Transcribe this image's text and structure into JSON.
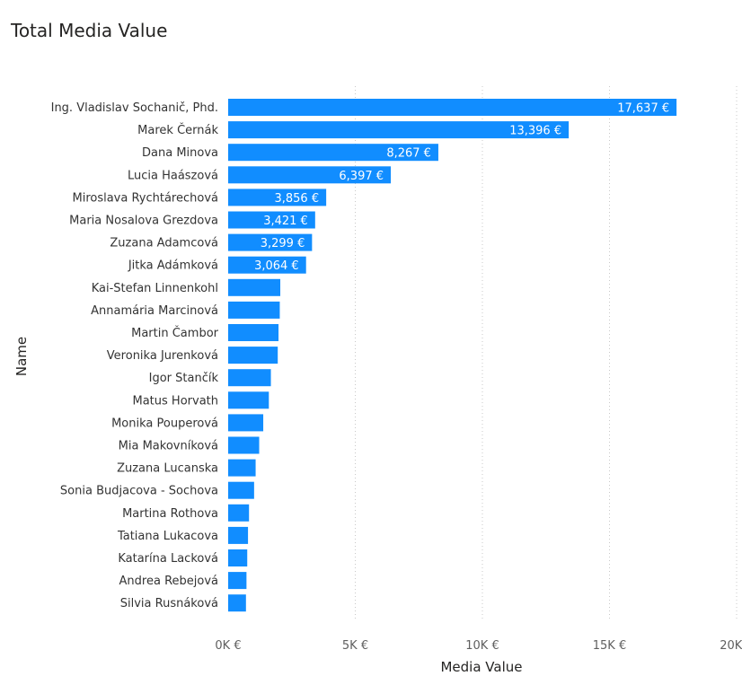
{
  "chart_data": {
    "type": "bar",
    "orientation": "horizontal",
    "title": "Total Media Value",
    "xlabel": "Media Value",
    "ylabel": "Name",
    "xlim": [
      0,
      20000
    ],
    "x_ticks": [
      0,
      5000,
      10000,
      15000,
      20000
    ],
    "x_tick_labels": [
      "0K €",
      "5K €",
      "10K €",
      "15K €",
      "20K €"
    ],
    "grid": "vertical dotted",
    "bar_color": "#118DFF",
    "categories": [
      "Ing. Vladislav Sochanič, Phd.",
      "Marek Černák",
      "Dana Minova",
      "Lucia Haászová",
      "Miroslava Rychtárechová",
      "Maria Nosalova Grezdova",
      "Zuzana Adamcová",
      "Jitka Adámková",
      "Kai-Stefan Linnenkohl",
      "Annamária Marcinová",
      "Martin Čambor",
      "Veronika Jurenková",
      "Igor Stančík",
      "Matus Horvath",
      "Monika Pouperová",
      "Mia Makovníková",
      "Zuzana Lucanska",
      "Sonia Budjacova - Sochova",
      "Martina Rothova",
      "Tatiana Lukacova",
      "Katarína Lacková",
      "Andrea Rebejová",
      "Silvia Rusnáková"
    ],
    "values": [
      17637,
      13396,
      8267,
      6397,
      3856,
      3421,
      3299,
      3064,
      2050,
      2030,
      1980,
      1950,
      1680,
      1600,
      1380,
      1220,
      1080,
      1020,
      820,
      780,
      750,
      720,
      700
    ],
    "data_labels": [
      "17,637 €",
      "13,396 €",
      "8,267 €",
      "6,397 €",
      "3,856 €",
      "3,421 €",
      "3,299 €",
      "3,064 €",
      "",
      "",
      "",
      "",
      "",
      "",
      "",
      "",
      "",
      "",
      "",
      "",
      "",
      "",
      ""
    ]
  }
}
